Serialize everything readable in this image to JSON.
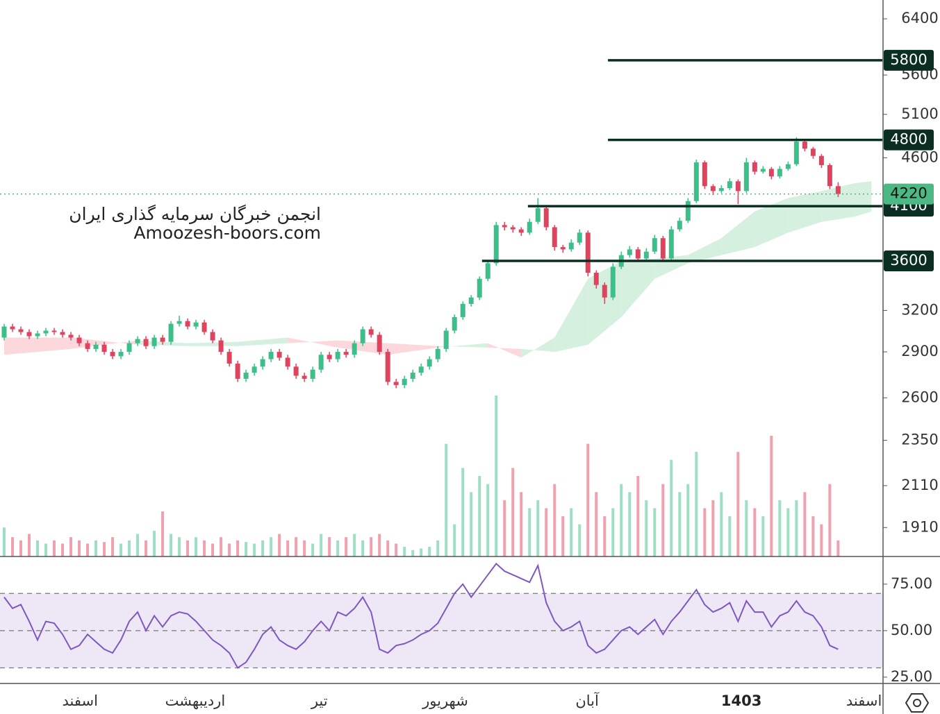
{
  "chart_data": [
    {
      "type": "candlestick",
      "watermark": [
        "انجمن خبرگان سرمایه گذاری ایران",
        "Amoozesh-boors.com"
      ],
      "log_scale": true,
      "ylim": [
        1783,
        6693
      ],
      "yticks": [
        6400,
        5600,
        5100,
        4600,
        3200,
        2900,
        2600,
        2350,
        2110,
        1910
      ],
      "xlim": [
        -0.5,
        105.3
      ],
      "xticks": [
        {
          "value": 9.1,
          "label": "اسفند"
        },
        {
          "value": 22.9,
          "label": "اردیبهشت"
        },
        {
          "value": 37.8,
          "label": "تیر"
        },
        {
          "value": 52.9,
          "label": "شهریور"
        },
        {
          "value": 69.9,
          "label": "آبان"
        },
        {
          "value": 88.4,
          "label": "1403",
          "bold": true
        },
        {
          "value": 103.1,
          "label": "اسفند"
        }
      ],
      "up_color": "#3dbf8a",
      "down_color": "#e0435e",
      "candles": [
        [
          3000,
          3100,
          2980,
          3080
        ],
        [
          3080,
          3100,
          3040,
          3060
        ],
        [
          3060,
          3080,
          3020,
          3040
        ],
        [
          3040,
          3060,
          2990,
          3010
        ],
        [
          3010,
          3050,
          2990,
          3030
        ],
        [
          3030,
          3070,
          3010,
          3050
        ],
        [
          3050,
          3070,
          3020,
          3040
        ],
        [
          3040,
          3060,
          3000,
          3020
        ],
        [
          3020,
          3040,
          2980,
          3000
        ],
        [
          3000,
          3020,
          2940,
          2960
        ],
        [
          2960,
          2980,
          2900,
          2920
        ],
        [
          2920,
          2970,
          2900,
          2950
        ],
        [
          2950,
          2970,
          2880,
          2900
        ],
        [
          2900,
          2920,
          2850,
          2870
        ],
        [
          2870,
          2920,
          2850,
          2900
        ],
        [
          2900,
          2980,
          2880,
          2960
        ],
        [
          2960,
          3010,
          2940,
          2990
        ],
        [
          2990,
          3010,
          2920,
          2940
        ],
        [
          2940,
          3020,
          2920,
          3000
        ],
        [
          3000,
          3020,
          2950,
          2970
        ],
        [
          2970,
          3120,
          2950,
          3100
        ],
        [
          3100,
          3160,
          3080,
          3120
        ],
        [
          3120,
          3140,
          3060,
          3080
        ],
        [
          3080,
          3130,
          3060,
          3110
        ],
        [
          3110,
          3130,
          3020,
          3040
        ],
        [
          3040,
          3060,
          2960,
          2980
        ],
        [
          2980,
          3000,
          2880,
          2900
        ],
        [
          2900,
          2920,
          2800,
          2820
        ],
        [
          2820,
          2840,
          2700,
          2720
        ],
        [
          2720,
          2780,
          2700,
          2760
        ],
        [
          2760,
          2820,
          2740,
          2800
        ],
        [
          2800,
          2870,
          2780,
          2850
        ],
        [
          2850,
          2920,
          2830,
          2900
        ],
        [
          2900,
          2920,
          2840,
          2860
        ],
        [
          2860,
          2880,
          2780,
          2800
        ],
        [
          2800,
          2820,
          2720,
          2740
        ],
        [
          2740,
          2760,
          2700,
          2720
        ],
        [
          2720,
          2800,
          2700,
          2780
        ],
        [
          2780,
          2900,
          2760,
          2880
        ],
        [
          2880,
          2900,
          2830,
          2850
        ],
        [
          2850,
          2920,
          2830,
          2900
        ],
        [
          2900,
          2920,
          2860,
          2880
        ],
        [
          2880,
          2980,
          2860,
          2960
        ],
        [
          2960,
          3080,
          2940,
          3060
        ],
        [
          3060,
          3080,
          3000,
          3020
        ],
        [
          3020,
          3040,
          2880,
          2900
        ],
        [
          2900,
          2920,
          2680,
          2700
        ],
        [
          2700,
          2720,
          2660,
          2680
        ],
        [
          2680,
          2740,
          2660,
          2720
        ],
        [
          2720,
          2780,
          2700,
          2760
        ],
        [
          2760,
          2820,
          2740,
          2800
        ],
        [
          2800,
          2870,
          2780,
          2850
        ],
        [
          2850,
          2940,
          2830,
          2920
        ],
        [
          2920,
          3070,
          2900,
          3050
        ],
        [
          3050,
          3170,
          3030,
          3150
        ],
        [
          3150,
          3270,
          3130,
          3250
        ],
        [
          3250,
          3320,
          3230,
          3300
        ],
        [
          3300,
          3470,
          3280,
          3450
        ],
        [
          3450,
          3600,
          3430,
          3580
        ],
        [
          3580,
          3950,
          3560,
          3920
        ],
        [
          3920,
          3950,
          3870,
          3900
        ],
        [
          3900,
          3920,
          3850,
          3880
        ],
        [
          3880,
          3900,
          3820,
          3850
        ],
        [
          3850,
          3980,
          3830,
          3950
        ],
        [
          3950,
          4180,
          3930,
          4080
        ],
        [
          4080,
          4100,
          3870,
          3900
        ],
        [
          3900,
          3920,
          3690,
          3720
        ],
        [
          3720,
          3740,
          3670,
          3700
        ],
        [
          3700,
          3790,
          3680,
          3760
        ],
        [
          3760,
          3880,
          3740,
          3850
        ],
        [
          3850,
          3870,
          3470,
          3500
        ],
        [
          3500,
          3520,
          3370,
          3400
        ],
        [
          3400,
          3420,
          3250,
          3300
        ],
        [
          3300,
          3580,
          3280,
          3550
        ],
        [
          3550,
          3680,
          3530,
          3650
        ],
        [
          3650,
          3730,
          3630,
          3700
        ],
        [
          3700,
          3720,
          3590,
          3620
        ],
        [
          3620,
          3710,
          3600,
          3680
        ],
        [
          3680,
          3830,
          3660,
          3800
        ],
        [
          3800,
          3820,
          3590,
          3620
        ],
        [
          3620,
          3910,
          3600,
          3880
        ],
        [
          3880,
          3990,
          3860,
          3960
        ],
        [
          3960,
          4180,
          3940,
          4150
        ],
        [
          4150,
          4580,
          4130,
          4550
        ],
        [
          4550,
          4570,
          4270,
          4300
        ],
        [
          4300,
          4320,
          4210,
          4250
        ],
        [
          4250,
          4310,
          4230,
          4280
        ],
        [
          4280,
          4380,
          4260,
          4350
        ],
        [
          4350,
          4370,
          4120,
          4250
        ],
        [
          4250,
          4600,
          4230,
          4550
        ],
        [
          4550,
          4570,
          4420,
          4450
        ],
        [
          4450,
          4510,
          4430,
          4480
        ],
        [
          4480,
          4500,
          4370,
          4400
        ],
        [
          4400,
          4510,
          4380,
          4480
        ],
        [
          4480,
          4560,
          4460,
          4530
        ],
        [
          4530,
          4830,
          4510,
          4780
        ],
        [
          4780,
          4800,
          4670,
          4700
        ],
        [
          4700,
          4720,
          4590,
          4620
        ],
        [
          4620,
          4640,
          4490,
          4520
        ],
        [
          4520,
          4540,
          4270,
          4300
        ],
        [
          4300,
          4340,
          4190,
          4220
        ]
      ],
      "volume": [
        18,
        12,
        10,
        14,
        10,
        8,
        10,
        8,
        12,
        10,
        8,
        10,
        9,
        12,
        8,
        10,
        14,
        10,
        16,
        28,
        14,
        12,
        10,
        12,
        10,
        8,
        12,
        8,
        10,
        9,
        8,
        10,
        12,
        14,
        10,
        12,
        10,
        8,
        14,
        12,
        10,
        12,
        14,
        10,
        12,
        14,
        10,
        8,
        6,
        4,
        5,
        6,
        10,
        70,
        20,
        55,
        40,
        50,
        45,
        100,
        35,
        55,
        40,
        30,
        35,
        30,
        45,
        25,
        30,
        20,
        70,
        40,
        25,
        30,
        45,
        40,
        50,
        35,
        30,
        45,
        60,
        40,
        45,
        65,
        30,
        35,
        40,
        25,
        65,
        35,
        30,
        25,
        75,
        35,
        30,
        35,
        40,
        25,
        20,
        45,
        10
      ],
      "cloud": {
        "x": [
          0,
          8,
          16,
          22,
          28,
          34,
          40,
          46,
          52,
          58,
          62,
          66,
          70,
          74,
          78,
          82,
          86,
          90,
          94,
          98,
          102,
          104
        ],
        "span_a": [
          2880,
          2920,
          2980,
          2960,
          2970,
          3000,
          2930,
          2880,
          2930,
          2960,
          2860,
          3000,
          3450,
          3600,
          3620,
          3650,
          3800,
          4050,
          4180,
          4250,
          4330,
          4350
        ],
        "span_b": [
          3000,
          3000,
          2950,
          2940,
          2940,
          2960,
          2980,
          2960,
          2940,
          2930,
          2920,
          2900,
          2950,
          3150,
          3450,
          3580,
          3650,
          3720,
          3850,
          3950,
          4000,
          4050
        ],
        "colors": [
          "#d5f0df",
          "#fcd7dc"
        ]
      },
      "levels": [
        {
          "value": 5800,
          "from": 72.4
        },
        {
          "value": 4800,
          "from": 72.4
        },
        {
          "value": 4100,
          "from": 62.8
        },
        {
          "value": 3600,
          "from": 57.3
        }
      ],
      "level_color": "#0b2e22",
      "last": 4220,
      "last_color": "#4cb883"
    },
    {
      "type": "line",
      "color": "#7e57c2",
      "ylim": [
        21.6,
        89.5
      ],
      "yticks": [
        {
          "value": 75,
          "label": "75.00"
        },
        {
          "value": 50,
          "label": "50.00"
        },
        {
          "value": 25,
          "label": "25.00"
        }
      ],
      "levels": [
        70,
        50,
        30
      ],
      "band_color": "#ede7f6",
      "values": [
        68,
        62,
        64,
        55,
        45,
        55,
        54,
        48,
        40,
        42,
        48,
        44,
        40,
        38,
        45,
        55,
        60,
        50,
        58,
        52,
        58,
        60,
        59,
        55,
        50,
        45,
        42,
        38,
        30,
        33,
        40,
        48,
        52,
        45,
        42,
        40,
        44,
        50,
        55,
        50,
        60,
        58,
        62,
        68,
        60,
        40,
        38,
        42,
        43,
        45,
        48,
        50,
        54,
        62,
        70,
        75,
        68,
        74,
        80,
        86,
        82,
        80,
        78,
        76,
        85,
        65,
        55,
        50,
        52,
        55,
        42,
        38,
        40,
        45,
        50,
        52,
        48,
        52,
        56,
        48,
        55,
        60,
        66,
        72,
        64,
        60,
        62,
        65,
        55,
        66,
        60,
        60,
        52,
        58,
        60,
        66,
        60,
        58,
        52,
        42,
        40
      ]
    }
  ]
}
